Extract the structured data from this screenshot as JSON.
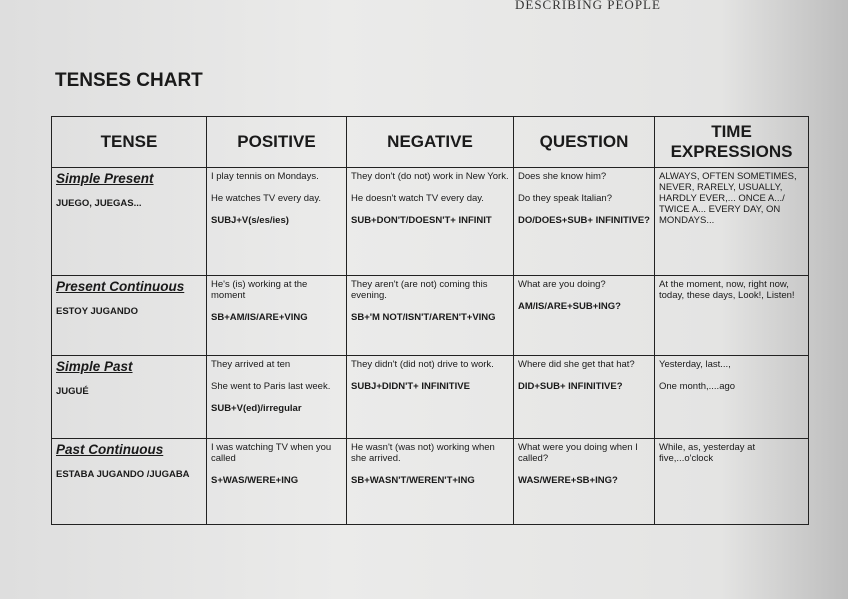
{
  "header": {
    "running_title": "DESCRIBING PEOPLE",
    "title": "TENSES CHART"
  },
  "table": {
    "columns": [
      "TENSE",
      "POSITIVE",
      "NEGATIVE",
      "QUESTION",
      "TIME EXPRESSIONS"
    ],
    "rows": [
      {
        "tense": "Simple Present",
        "spanish": "JUEGO, JUEGAS...",
        "positive": {
          "examples": [
            "I play tennis on Mondays.",
            "He watches TV every day."
          ],
          "rule": "SUBJ+V(s/es/ies)"
        },
        "negative": {
          "examples": [
            "They don't (do not) work in New York.",
            "He doesn't watch TV every day."
          ],
          "rule": "SUB+DON'T/DOESN'T+ INFINIT"
        },
        "question": {
          "examples": [
            "Does she know him?",
            "Do they speak Italian?"
          ],
          "rule": "DO/DOES+SUB+ INFINITIVE?"
        },
        "time": {
          "examples": [
            "ALWAYS, OFTEN SOMETIMES, NEVER, RARELY, USUALLY, HARDLY EVER,... ONCE A.../ TWICE A... EVERY DAY, ON MONDAYS..."
          ]
        }
      },
      {
        "tense": "Present Continuous",
        "spanish": "ESTOY JUGANDO",
        "positive": {
          "examples": [
            "He's (is) working at the moment"
          ],
          "rule": "SB+AM/IS/ARE+VING"
        },
        "negative": {
          "examples": [
            "They aren't (are not) coming this evening."
          ],
          "rule": "SB+'M NOT/ISN'T/AREN'T+VING"
        },
        "question": {
          "examples": [
            "What are you doing?"
          ],
          "rule": "AM/IS/ARE+SUB+ING?"
        },
        "time": {
          "examples": [
            "At the moment, now, right now, today, these days, Look!, Listen!"
          ]
        }
      },
      {
        "tense": "Simple Past",
        "spanish": "JUGUÉ",
        "positive": {
          "examples": [
            "They arrived at ten",
            "She went to Paris last week."
          ],
          "rule": "SUB+V(ed)/irregular"
        },
        "negative": {
          "examples": [
            "They didn't (did not) drive to work."
          ],
          "rule": "SUBJ+DIDN'T+ INFINITIVE"
        },
        "question": {
          "examples": [
            "Where did she get that hat?"
          ],
          "rule": "DID+SUB+ INFINITIVE?"
        },
        "time": {
          "examples": [
            "Yesterday, last...,",
            "One month,....ago"
          ]
        }
      },
      {
        "tense": "Past Continuous",
        "spanish": "ESTABA JUGANDO /JUGABA",
        "positive": {
          "examples": [
            "I was watching TV when you called"
          ],
          "rule": "S+WAS/WERE+ING"
        },
        "negative": {
          "examples": [
            "He wasn't (was not) working when she arrived."
          ],
          "rule": "SB+WASN'T/WEREN'T+ING"
        },
        "question": {
          "examples": [
            "What were you doing when I called?"
          ],
          "rule": "WAS/WERE+SB+ING?"
        },
        "time": {
          "examples": [
            "While, as, yesterday at five,...o'clock"
          ]
        }
      }
    ]
  }
}
